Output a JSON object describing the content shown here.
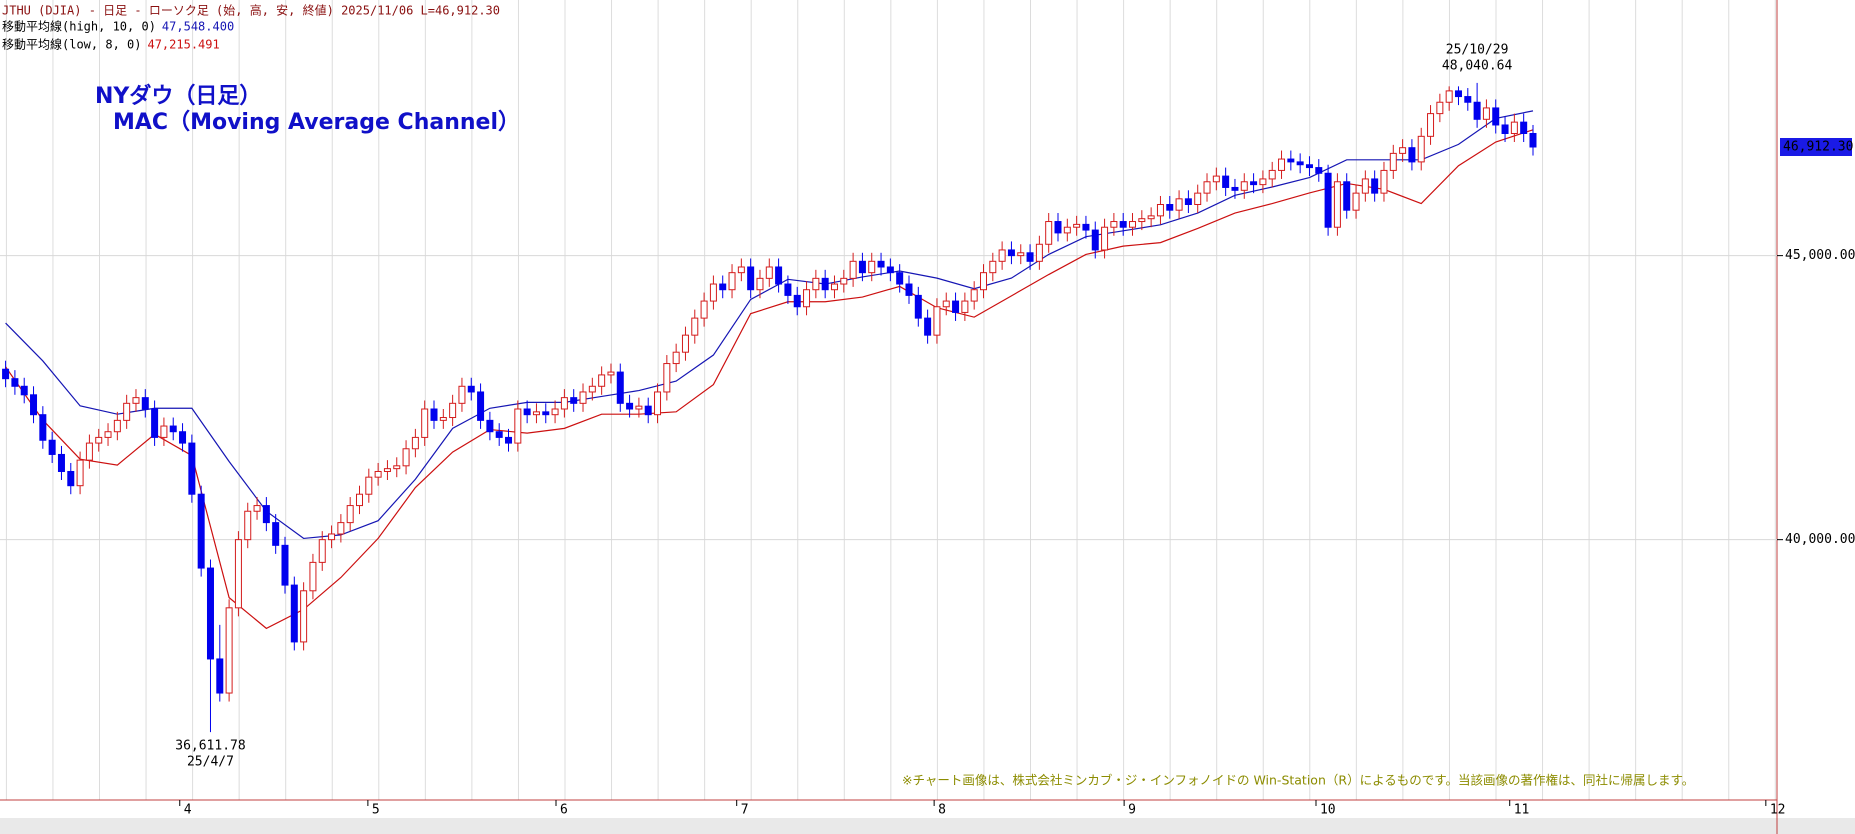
{
  "chart_data": {
    "type": "candlestick",
    "header": "JTHU (DJIA) - 日足 - ローソク足 (始, 高, 安, 終値)  2025/11/06 L=46,912.30",
    "title": "NYダウ（日足）",
    "subtitle": "MAC（Moving Average Channel）",
    "note": "※チャート画像は、株式会社ミンカブ・ジ・インフォノイドの Win-Station（R）によるものです。当該画像の著作権は、同社に帰属します。",
    "colors": {
      "up": "#d41c1c",
      "down": "#0000ee"
    },
    "ohlc": [
      [
        43000,
        43150,
        42684,
        42834
      ],
      [
        42834,
        42984,
        42550,
        42700
      ],
      [
        42700,
        42850,
        42400,
        42550
      ],
      [
        42550,
        42700,
        42050,
        42200
      ],
      [
        42200,
        42350,
        41600,
        41750
      ],
      [
        41750,
        41900,
        41350,
        41500
      ],
      [
        41500,
        41650,
        41050,
        41200
      ],
      [
        41200,
        41350,
        40800,
        40950
      ],
      [
        40950,
        41550,
        40800,
        41400
      ],
      [
        41400,
        41850,
        41250,
        41700
      ],
      [
        41700,
        41950,
        41550,
        41800
      ],
      [
        41800,
        42050,
        41650,
        41900
      ],
      [
        41900,
        42250,
        41750,
        42100
      ],
      [
        42100,
        42550,
        41950,
        42400
      ],
      [
        42400,
        42650,
        42250,
        42500
      ],
      [
        42500,
        42650,
        42150,
        42300
      ],
      [
        42300,
        42450,
        41650,
        41800
      ],
      [
        41800,
        42150,
        41650,
        42000
      ],
      [
        42000,
        42150,
        41750,
        41900
      ],
      [
        41900,
        42050,
        41550,
        41700
      ],
      [
        41700,
        41850,
        40650,
        40800
      ],
      [
        40800,
        40950,
        39350,
        39500
      ],
      [
        39500,
        39650,
        36611.78,
        37900
      ],
      [
        37900,
        38500,
        37150,
        37300
      ],
      [
        37300,
        38950,
        37150,
        38800
      ],
      [
        38800,
        40150,
        38650,
        40000
      ],
      [
        40000,
        40650,
        39850,
        40500
      ],
      [
        40500,
        40750,
        40350,
        40600
      ],
      [
        40600,
        40750,
        40150,
        40300
      ],
      [
        40300,
        40450,
        39750,
        39900
      ],
      [
        39900,
        40050,
        39050,
        39200
      ],
      [
        39200,
        39350,
        38050,
        38200
      ],
      [
        38200,
        39250,
        38050,
        39100
      ],
      [
        39100,
        39750,
        38950,
        39600
      ],
      [
        39600,
        40150,
        39450,
        40000
      ],
      [
        40000,
        40250,
        39850,
        40100
      ],
      [
        40100,
        40450,
        39950,
        40300
      ],
      [
        40300,
        40750,
        40150,
        40600
      ],
      [
        40600,
        40950,
        40450,
        40800
      ],
      [
        40800,
        41250,
        40650,
        41100
      ],
      [
        41100,
        41350,
        40950,
        41200
      ],
      [
        41200,
        41400,
        41050,
        41250
      ],
      [
        41250,
        41450,
        41100,
        41300
      ],
      [
        41300,
        41750,
        41150,
        41600
      ],
      [
        41600,
        41950,
        41450,
        41800
      ],
      [
        41800,
        42450,
        41650,
        42300
      ],
      [
        42300,
        42450,
        41950,
        42100
      ],
      [
        42100,
        42300,
        41950,
        42150
      ],
      [
        42150,
        42550,
        42000,
        42400
      ],
      [
        42400,
        42850,
        42250,
        42700
      ],
      [
        42700,
        42850,
        42450,
        42600
      ],
      [
        42600,
        42750,
        41950,
        42100
      ],
      [
        42100,
        42250,
        41750,
        41900
      ],
      [
        41900,
        42050,
        41650,
        41800
      ],
      [
        41800,
        41950,
        41550,
        41700
      ],
      [
        41700,
        42450,
        41550,
        42300
      ],
      [
        42300,
        42450,
        42050,
        42200
      ],
      [
        42200,
        42400,
        42050,
        42250
      ],
      [
        42250,
        42400,
        42050,
        42200
      ],
      [
        42200,
        42450,
        42050,
        42300
      ],
      [
        42300,
        42650,
        42150,
        42500
      ],
      [
        42500,
        42650,
        42250,
        42400
      ],
      [
        42400,
        42750,
        42250,
        42600
      ],
      [
        42600,
        42850,
        42450,
        42700
      ],
      [
        42700,
        43050,
        42550,
        42900
      ],
      [
        42900,
        43100,
        42750,
        42950
      ],
      [
        42950,
        43100,
        42250,
        42400
      ],
      [
        42400,
        42550,
        42150,
        42300
      ],
      [
        42300,
        42500,
        42150,
        42350
      ],
      [
        42350,
        42500,
        42050,
        42200
      ],
      [
        42200,
        42750,
        42050,
        42600
      ],
      [
        42600,
        43250,
        42450,
        43100
      ],
      [
        43100,
        43450,
        42950,
        43300
      ],
      [
        43300,
        43750,
        43150,
        43600
      ],
      [
        43600,
        44050,
        43450,
        43900
      ],
      [
        43900,
        44350,
        43750,
        44200
      ],
      [
        44200,
        44650,
        44050,
        44500
      ],
      [
        44500,
        44650,
        44250,
        44400
      ],
      [
        44400,
        44850,
        44250,
        44700
      ],
      [
        44700,
        44950,
        44550,
        44800
      ],
      [
        44800,
        44950,
        44250,
        44400
      ],
      [
        44400,
        44750,
        44250,
        44600
      ],
      [
        44600,
        44950,
        44450,
        44800
      ],
      [
        44800,
        44950,
        44350,
        44500
      ],
      [
        44500,
        44650,
        44150,
        44300
      ],
      [
        44300,
        44450,
        43950,
        44100
      ],
      [
        44100,
        44550,
        43950,
        44400
      ],
      [
        44400,
        44750,
        44250,
        44600
      ],
      [
        44600,
        44750,
        44250,
        44400
      ],
      [
        44400,
        44650,
        44250,
        44500
      ],
      [
        44500,
        44750,
        44350,
        44600
      ],
      [
        44600,
        45050,
        44450,
        44900
      ],
      [
        44900,
        45050,
        44550,
        44700
      ],
      [
        44700,
        45050,
        44550,
        44900
      ],
      [
        44900,
        45050,
        44650,
        44800
      ],
      [
        44800,
        44950,
        44550,
        44700
      ],
      [
        44700,
        44850,
        44350,
        44500
      ],
      [
        44500,
        44650,
        44150,
        44300
      ],
      [
        44300,
        44450,
        43750,
        43900
      ],
      [
        43900,
        44050,
        43450,
        43600
      ],
      [
        43600,
        44250,
        43450,
        44100
      ],
      [
        44100,
        44350,
        43950,
        44200
      ],
      [
        44200,
        44350,
        43850,
        44000
      ],
      [
        44000,
        44350,
        43850,
        44200
      ],
      [
        44200,
        44550,
        44050,
        44400
      ],
      [
        44400,
        44850,
        44250,
        44700
      ],
      [
        44700,
        45050,
        44550,
        44900
      ],
      [
        44900,
        45250,
        44750,
        45100
      ],
      [
        45100,
        45250,
        44850,
        45000
      ],
      [
        45000,
        45200,
        44850,
        45050
      ],
      [
        45050,
        45200,
        44750,
        44900
      ],
      [
        44900,
        45350,
        44750,
        45200
      ],
      [
        45200,
        45750,
        45050,
        45600
      ],
      [
        45600,
        45750,
        45250,
        45400
      ],
      [
        45400,
        45650,
        45250,
        45500
      ],
      [
        45500,
        45700,
        45350,
        45550
      ],
      [
        45550,
        45700,
        45300,
        45450
      ],
      [
        45450,
        45600,
        44950,
        45100
      ],
      [
        45100,
        45650,
        44950,
        45500
      ],
      [
        45500,
        45750,
        45350,
        45600
      ],
      [
        45600,
        45750,
        45350,
        45500
      ],
      [
        45500,
        45750,
        45350,
        45600
      ],
      [
        45600,
        45800,
        45450,
        45650
      ],
      [
        45650,
        45850,
        45500,
        45700
      ],
      [
        45700,
        46050,
        45550,
        45900
      ],
      [
        45900,
        46050,
        45650,
        45800
      ],
      [
        45800,
        46150,
        45650,
        46000
      ],
      [
        46000,
        46150,
        45750,
        45900
      ],
      [
        45900,
        46250,
        45750,
        46100
      ],
      [
        46100,
        46450,
        45950,
        46300
      ],
      [
        46300,
        46550,
        46150,
        46400
      ],
      [
        46400,
        46550,
        46050,
        46200
      ],
      [
        46200,
        46350,
        46000,
        46150
      ],
      [
        46150,
        46450,
        46000,
        46300
      ],
      [
        46300,
        46450,
        46100,
        46250
      ],
      [
        46250,
        46500,
        46100,
        46350
      ],
      [
        46350,
        46650,
        46200,
        46500
      ],
      [
        46500,
        46850,
        46350,
        46700
      ],
      [
        46700,
        46850,
        46500,
        46650
      ],
      [
        46650,
        46800,
        46450,
        46600
      ],
      [
        46600,
        46750,
        46400,
        46550
      ],
      [
        46550,
        46700,
        46300,
        46450
      ],
      [
        46450,
        46600,
        45350,
        45500
      ],
      [
        45500,
        46450,
        45350,
        46300
      ],
      [
        46300,
        46450,
        45650,
        45800
      ],
      [
        45800,
        46250,
        45650,
        46100
      ],
      [
        46100,
        46500,
        45950,
        46350
      ],
      [
        46350,
        46500,
        45950,
        46100
      ],
      [
        46100,
        46650,
        45950,
        46500
      ],
      [
        46500,
        46950,
        46350,
        46800
      ],
      [
        46800,
        47050,
        46650,
        46900
      ],
      [
        46900,
        47050,
        46500,
        46650
      ],
      [
        46650,
        47250,
        46500,
        47100
      ],
      [
        47100,
        47650,
        46950,
        47500
      ],
      [
        47500,
        47850,
        47350,
        47700
      ],
      [
        47700,
        47980,
        47550,
        47900
      ],
      [
        47900,
        47980,
        47650,
        47800
      ],
      [
        47800,
        47950,
        47550,
        47700
      ],
      [
        47700,
        48040.64,
        47250,
        47400
      ],
      [
        47400,
        47750,
        47250,
        47600
      ],
      [
        47600,
        47750,
        47150,
        47300
      ],
      [
        47300,
        47450,
        47000,
        47150
      ],
      [
        47150,
        47500,
        47000,
        47350
      ],
      [
        47350,
        47500,
        47000,
        47150
      ],
      [
        47150,
        47300,
        46762,
        46912.3
      ]
    ],
    "series": [
      {
        "name": "移動平均線(high, 10, 0)",
        "last_label": "47,548.400",
        "color": "#1616b4",
        "x": [
          0,
          4,
          8,
          12,
          16,
          20,
          24,
          28,
          32,
          36,
          40,
          44,
          48,
          52,
          56,
          60,
          64,
          68,
          72,
          76,
          80,
          84,
          88,
          92,
          96,
          100,
          104,
          108,
          112,
          116,
          120,
          124,
          128,
          132,
          136,
          140,
          144,
          148,
          152,
          156,
          160,
          164
        ],
        "values": [
          43813,
          43146,
          42355,
          42209,
          42313,
          42313,
          41376,
          40501,
          40022,
          40084,
          40334,
          41063,
          41959,
          42313,
          42417,
          42417,
          42521,
          42625,
          42792,
          43250,
          44229,
          44583,
          44500,
          44625,
          44729,
          44604,
          44417,
          44604,
          45021,
          45333,
          45437,
          45542,
          45750,
          46062,
          46208,
          46375,
          46687,
          46687,
          46687,
          46958,
          47416,
          47548.4
        ]
      },
      {
        "name": "移動平均線(low, 8, 0)",
        "last_label": "47,215.491",
        "color": "#cc1010",
        "x": [
          0,
          4,
          8,
          12,
          16,
          20,
          24,
          28,
          32,
          36,
          40,
          44,
          48,
          52,
          56,
          60,
          64,
          68,
          72,
          76,
          80,
          84,
          88,
          92,
          96,
          100,
          104,
          108,
          112,
          116,
          120,
          124,
          128,
          132,
          136,
          140,
          144,
          148,
          152,
          156,
          160,
          164
        ],
        "values": [
          43042,
          42105,
          41417,
          41313,
          41855,
          41480,
          38980,
          38438,
          38772,
          39334,
          40022,
          40917,
          41542,
          41938,
          41875,
          41959,
          42209,
          42209,
          42250,
          42730,
          43979,
          44188,
          44188,
          44271,
          44458,
          44083,
          43917,
          44292,
          44667,
          45021,
          45167,
          45229,
          45479,
          45750,
          45917,
          46104,
          46271,
          46167,
          45917,
          46583,
          47000,
          47215.491
        ]
      }
    ],
    "high_annotation": {
      "date": "25/10/29",
      "label": "48,040.64"
    },
    "low_annotation": {
      "label": "36,611.78",
      "date": "25/4/7"
    },
    "last_label": "46,912.30",
    "xlim": [
      -0.6,
      190.2
    ],
    "xticks": [
      {
        "value": 18.7,
        "label": "4"
      },
      {
        "value": 38.9,
        "label": "5"
      },
      {
        "value": 59.1,
        "label": "6"
      },
      {
        "value": 78.5,
        "label": "7"
      },
      {
        "value": 99.7,
        "label": "8"
      },
      {
        "value": 120.1,
        "label": "9"
      },
      {
        "value": 140.7,
        "label": "10"
      },
      {
        "value": 161.5,
        "label": "11"
      },
      {
        "value": 189,
        "label": "12"
      }
    ],
    "ylim": [
      35417,
      49500
    ],
    "yticks": [
      {
        "value": 40000,
        "label": "40,000.00"
      },
      {
        "value": 45000,
        "label": "45,000.00"
      }
    ],
    "grid": true
  }
}
